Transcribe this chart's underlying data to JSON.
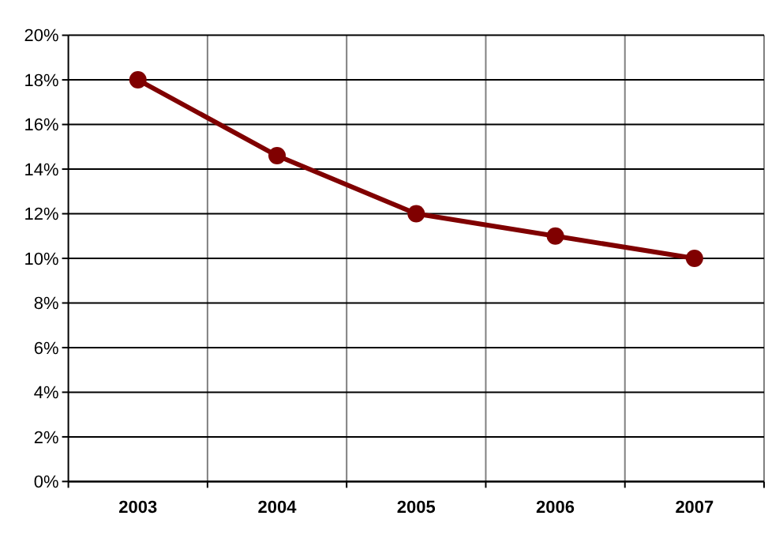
{
  "chart_data": {
    "type": "line",
    "categories": [
      "2003",
      "2004",
      "2005",
      "2006",
      "2007"
    ],
    "series": [
      {
        "color": "#800000",
        "values": [
          18,
          14.6,
          12,
          11,
          10
        ]
      }
    ],
    "ylim": [
      0,
      20
    ],
    "yticks": [
      {
        "value": 0,
        "label": "0%"
      },
      {
        "value": 2,
        "label": "2%"
      },
      {
        "value": 4,
        "label": "4%"
      },
      {
        "value": 6,
        "label": "6%"
      },
      {
        "value": 8,
        "label": "8%"
      },
      {
        "value": 10,
        "label": "10%"
      },
      {
        "value": 12,
        "label": "12%"
      },
      {
        "value": 14,
        "label": "14%"
      },
      {
        "value": 16,
        "label": "16%"
      },
      {
        "value": 18,
        "label": "18%"
      },
      {
        "value": 20,
        "label": "20%"
      }
    ],
    "grid": true,
    "marker": "circle",
    "line_style": "solid"
  }
}
